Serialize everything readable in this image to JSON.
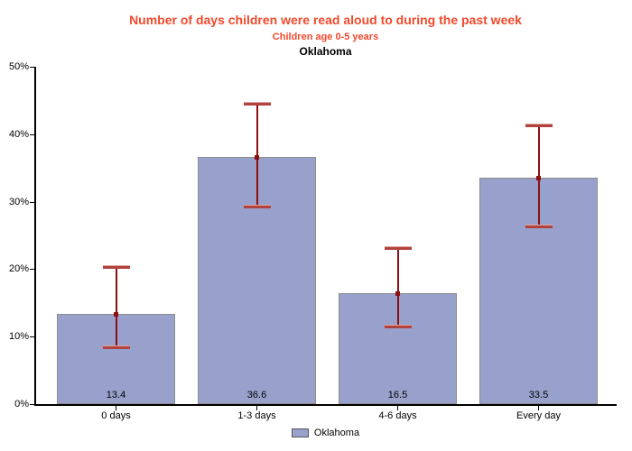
{
  "header": {
    "title": "Number of days children were read aloud to during the past week",
    "subtitle": "Children age 0-5 years",
    "region": "Oklahoma"
  },
  "legend": {
    "label": "Oklahoma"
  },
  "colors": {
    "title_text": "#f2492c",
    "subtitle_text": "#f2492c",
    "region_text": "#000000",
    "bar_fill": "#98a1cc",
    "bar_border": "#8c8c8c",
    "error_line": "#8b1010",
    "error_cap": "#b2423d",
    "axis": "#000000"
  },
  "chart_data": {
    "type": "bar",
    "title": "Number of days children were read aloud to during the past week",
    "subtitle": "Children age 0-5 years",
    "region": "Oklahoma",
    "categories": [
      "0 days",
      "1-3 days",
      "4-6 days",
      "Every day"
    ],
    "values": [
      13.4,
      36.6,
      16.5,
      33.5
    ],
    "ci_low": [
      8.5,
      29.4,
      11.6,
      26.5
    ],
    "ci_high": [
      20.4,
      44.6,
      23.2,
      41.5
    ],
    "series_label": "Oklahoma",
    "xlabel": "",
    "ylabel": "",
    "ylim": [
      0,
      50
    ],
    "yticks": [
      0,
      10,
      20,
      30,
      40,
      50
    ],
    "ytick_labels": [
      "0%",
      "10%",
      "20%",
      "30%",
      "40%",
      "50%"
    ],
    "grid": false,
    "legend_position": "bottom-center",
    "error_bars": true
  }
}
